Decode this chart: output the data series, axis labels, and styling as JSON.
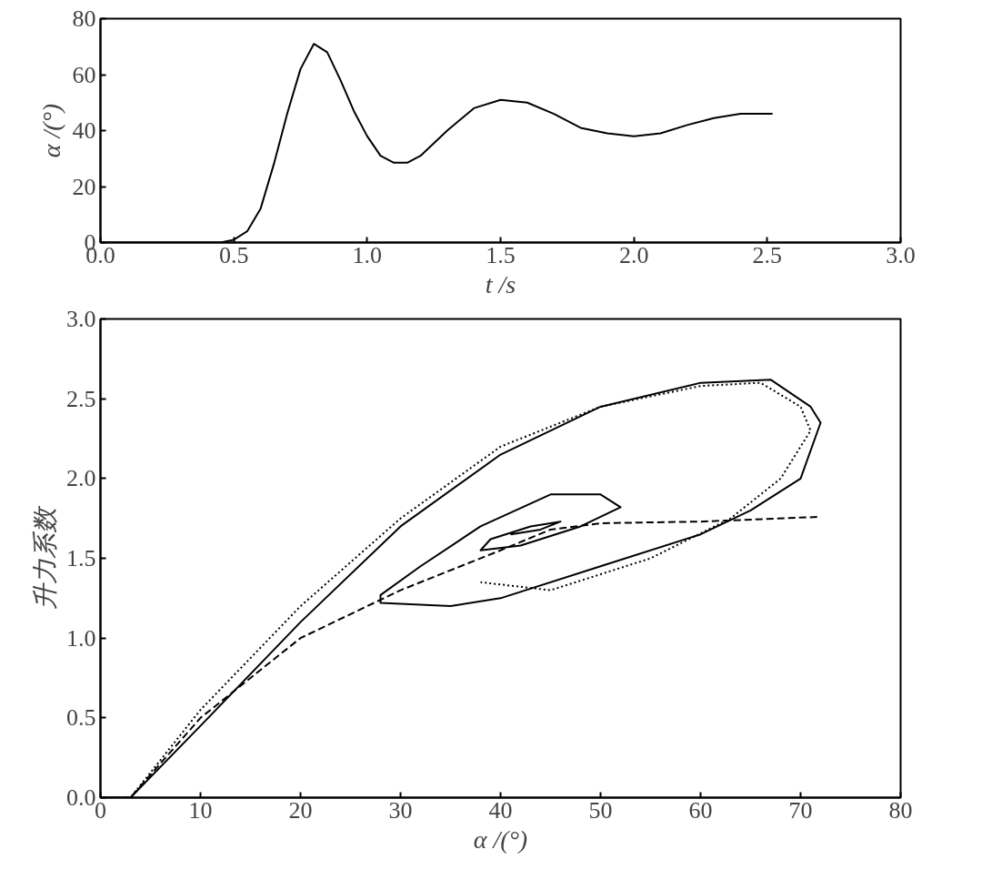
{
  "chart_data": [
    {
      "type": "line",
      "xlabel": "t /s",
      "ylabel": "α /(°)",
      "xlim": [
        0,
        3
      ],
      "ylim": [
        0,
        80
      ],
      "grid": false,
      "xticks": [
        {
          "value": 0,
          "label": "0.0"
        },
        {
          "value": 0.5,
          "label": "0.5"
        },
        {
          "value": 1,
          "label": "1.0"
        },
        {
          "value": 1.5,
          "label": "1.5"
        },
        {
          "value": 2,
          "label": "2.0"
        },
        {
          "value": 2.5,
          "label": "2.5"
        },
        {
          "value": 3,
          "label": "3.0"
        }
      ],
      "yticks": [
        0,
        20,
        40,
        60,
        80
      ],
      "series": [
        {
          "color": "#000000",
          "line_style": "solid",
          "x": [
            0,
            0.45,
            0.5,
            0.55,
            0.6,
            0.65,
            0.7,
            0.75,
            0.8,
            0.85,
            0.9,
            0.95,
            1.0,
            1.05,
            1.1,
            1.15,
            1.2,
            1.3,
            1.4,
            1.5,
            1.6,
            1.7,
            1.8,
            1.9,
            2.0,
            2.1,
            2.2,
            2.3,
            2.4,
            2.52
          ],
          "values": [
            0,
            0,
            1,
            4,
            12,
            28,
            46,
            62,
            71,
            68,
            58,
            47,
            38,
            31,
            28.5,
            28.5,
            31,
            40,
            48,
            51,
            50,
            46,
            41,
            39,
            38,
            39,
            42,
            44.5,
            46,
            46
          ]
        }
      ]
    },
    {
      "type": "line",
      "xlabel": "α /(°)",
      "ylabel": "升力系数",
      "xlim": [
        0,
        80
      ],
      "ylim": [
        0,
        3
      ],
      "grid": false,
      "xticks": [
        0,
        10,
        20,
        30,
        40,
        50,
        60,
        70,
        80
      ],
      "yticks": [
        {
          "value": 0,
          "label": "0.0"
        },
        {
          "value": 0.5,
          "label": "0.5"
        },
        {
          "value": 1,
          "label": "1.0"
        },
        {
          "value": 1.5,
          "label": "1.5"
        },
        {
          "value": 2,
          "label": "2.0"
        },
        {
          "value": 2.5,
          "label": "2.5"
        },
        {
          "value": 3,
          "label": "3.0"
        }
      ],
      "series": [
        {
          "color": "#000000",
          "line_style": "solid",
          "x": [
            0,
            3,
            10,
            20,
            30,
            40,
            50,
            60,
            67,
            71,
            72,
            70,
            65,
            60,
            50,
            40,
            35,
            28,
            28,
            32,
            38,
            45,
            50,
            52,
            48,
            42,
            38,
            39,
            43,
            46,
            44,
            41
          ],
          "values": [
            0,
            0,
            0.45,
            1.1,
            1.7,
            2.15,
            2.45,
            2.6,
            2.62,
            2.45,
            2.35,
            2.0,
            1.8,
            1.65,
            1.45,
            1.25,
            1.2,
            1.22,
            1.27,
            1.45,
            1.7,
            1.9,
            1.9,
            1.82,
            1.7,
            1.58,
            1.55,
            1.62,
            1.7,
            1.73,
            1.68,
            1.65
          ]
        },
        {
          "color": "#000000",
          "line_style": "dashed",
          "x": [
            0,
            3,
            10,
            20,
            30,
            40,
            45,
            50,
            60,
            72
          ],
          "values": [
            0,
            0,
            0.5,
            1.0,
            1.3,
            1.55,
            1.68,
            1.72,
            1.73,
            1.76
          ]
        },
        {
          "color": "#000000",
          "line_style": "dotted",
          "x": [
            0,
            3,
            10,
            20,
            30,
            40,
            50,
            60,
            66,
            70,
            71,
            68,
            63,
            55,
            45,
            38
          ],
          "values": [
            0,
            0,
            0.55,
            1.2,
            1.75,
            2.2,
            2.45,
            2.58,
            2.6,
            2.45,
            2.3,
            2.0,
            1.75,
            1.5,
            1.3,
            1.35
          ]
        }
      ]
    }
  ]
}
